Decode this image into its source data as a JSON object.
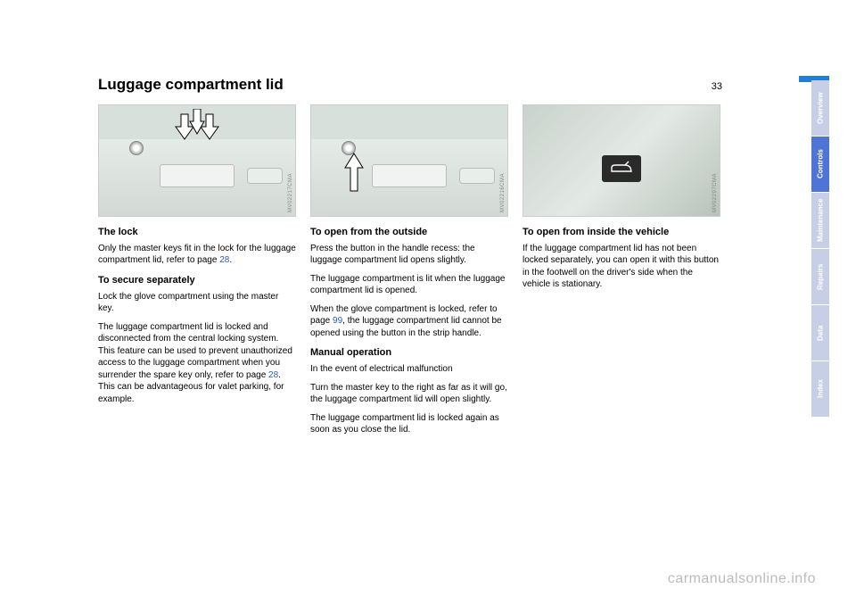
{
  "page": {
    "title": "Luggage compartment lid",
    "number": "33"
  },
  "col1": {
    "fig_code": "MV02217CMA",
    "h_lock": "The lock",
    "p_lock_1a": "Only the master keys fit in the lock for the luggage compartment lid, refer to page ",
    "p_lock_link": "28",
    "p_lock_1b": ".",
    "h_secure": "To secure separately",
    "p_secure_1": "Lock the glove compartment using the master key.",
    "p_secure_2a": "The luggage compartment lid is locked and disconnected from the central locking system. This feature can be used to prevent unauthorized access to the luggage compartment when you surrender the spare key only, refer to page ",
    "p_secure_link": "28",
    "p_secure_2b": ". This can be advantageous for valet parking, for example."
  },
  "col2": {
    "fig_code": "MV02216CMA",
    "h_open_out": "To open from the outside",
    "p_out_1": "Press the button in the handle recess: the luggage compartment lid opens slightly.",
    "p_out_2": "The luggage compartment is lit when the luggage compartment lid is opened.",
    "p_out_3a": "When the glove compartment is locked, refer to page ",
    "p_out_link": "99",
    "p_out_3b": ", the luggage compartment lid cannot be opened using the button in the strip handle.",
    "h_manual": "Manual operation",
    "p_manual_1": "In the event of electrical malfunction",
    "p_manual_2": "Turn the master key to the right as far as it will go, the luggage compartment lid will open slightly.",
    "p_manual_3": "The luggage compartment lid is locked again as soon as you close the lid."
  },
  "col3": {
    "fig_code": "MV02297CMA",
    "h_open_in": "To open from inside the vehicle",
    "p_in_1": "If the luggage compartment lid has not been locked separately, you can open it with this button in the footwell on the driver's side when the vehicle is stationary."
  },
  "tabs": [
    {
      "label": "Overview",
      "bg": "#c6cfe6"
    },
    {
      "label": "Controls",
      "bg": "#4f74d6"
    },
    {
      "label": "Maintenance",
      "bg": "#c6cfe6"
    },
    {
      "label": "Repairs",
      "bg": "#c6cfe6"
    },
    {
      "label": "Data",
      "bg": "#c6cfe6"
    },
    {
      "label": "Index",
      "bg": "#c6cfe6"
    }
  ],
  "watermark": "carmanualsonline.info",
  "blue_bar_color": "#1f7fdd"
}
